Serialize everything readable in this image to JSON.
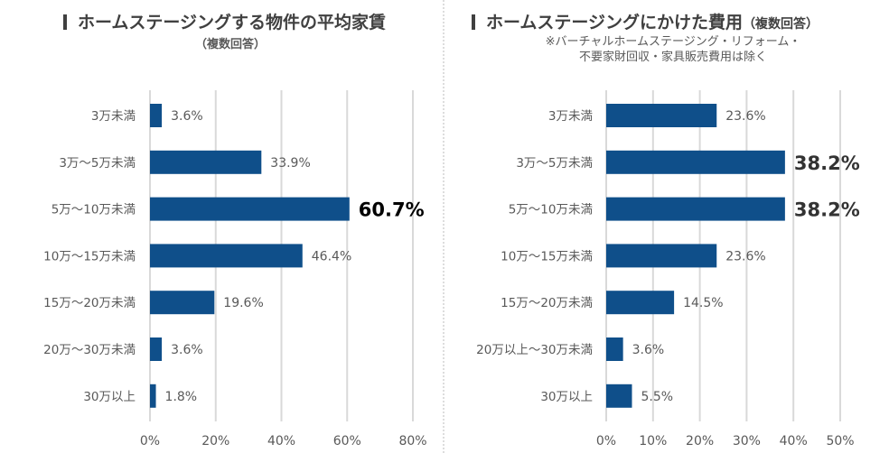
{
  "colors": {
    "bar": "#0f4f8a",
    "grid": "#d9d9d9",
    "label": "#595959",
    "highlight_label": "#000000",
    "title": "#404040"
  },
  "left": {
    "title": "ホームステージングする物件の平均家賃",
    "subtitle": "（複数回答）"
  },
  "right": {
    "title": "ホームステージングにかけた費用",
    "title_suffix": "（複数回答）",
    "note_line1": "※バーチャルホームステージング・リフォーム・",
    "note_line2": "不要家財回収・家具販売費用は除く"
  },
  "chart_data": [
    {
      "type": "bar",
      "orientation": "horizontal",
      "title": "ホームステージングする物件の平均家賃",
      "subtitle": "（複数回答）",
      "categories": [
        "3万未満",
        "3万〜5万未満",
        "5万〜10万未満",
        "10万〜15万未満",
        "15万〜20万未満",
        "20万〜30万未満",
        "30万以上"
      ],
      "values": [
        3.6,
        33.9,
        60.7,
        46.4,
        19.6,
        3.6,
        1.8
      ],
      "value_labels": [
        "3.6%",
        "33.9%",
        "60.7%",
        "46.4%",
        "19.6%",
        "3.6%",
        "1.8%"
      ],
      "highlight": [
        false,
        false,
        true,
        false,
        false,
        false,
        false
      ],
      "xlim": [
        0,
        80
      ],
      "xticks": [
        0,
        20,
        40,
        60,
        80
      ],
      "xtick_labels": [
        "0%",
        "20%",
        "40%",
        "60%",
        "80%"
      ],
      "grid": true,
      "xlabel": "",
      "ylabel": ""
    },
    {
      "type": "bar",
      "orientation": "horizontal",
      "title": "ホームステージングにかけた費用（複数回答）",
      "subtitle": "※バーチャルホームステージング・リフォーム・不要家財回収・家具販売費用は除く",
      "categories": [
        "3万未満",
        "3万〜5万未満",
        "5万〜10万未満",
        "10万〜15万未満",
        "15万〜20万未満",
        "20万以上〜30万未満",
        "30万以上"
      ],
      "values": [
        23.6,
        38.2,
        38.2,
        23.6,
        14.5,
        3.6,
        5.5
      ],
      "value_labels": [
        "23.6%",
        "38.2%",
        "38.2%",
        "23.6%",
        "14.5%",
        "3.6%",
        "5.5%"
      ],
      "highlight": [
        false,
        true,
        true,
        false,
        false,
        false,
        false
      ],
      "xlim": [
        0,
        50
      ],
      "xticks": [
        0,
        10,
        20,
        30,
        40,
        50
      ],
      "xtick_labels": [
        "0%",
        "10%",
        "20%",
        "30%",
        "40%",
        "50%"
      ],
      "grid": true,
      "xlabel": "",
      "ylabel": ""
    }
  ]
}
